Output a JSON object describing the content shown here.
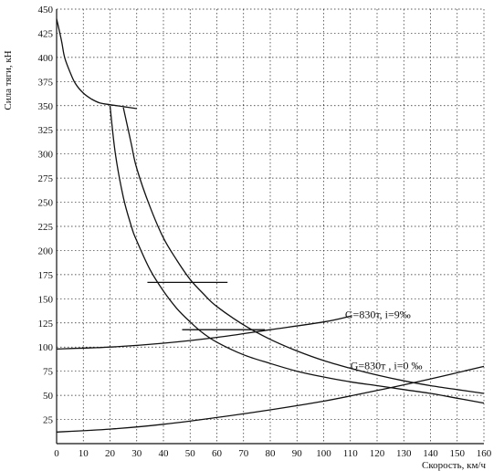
{
  "chart_data": {
    "type": "line",
    "ylabel": "Сила тяги, кН",
    "xlabel": "Скорость, км/ч",
    "xlim": [
      0,
      160
    ],
    "ylim": [
      0,
      450
    ],
    "xticks": [
      0,
      10,
      20,
      30,
      40,
      50,
      60,
      70,
      80,
      90,
      100,
      110,
      120,
      130,
      140,
      150,
      160
    ],
    "yticks": [
      25,
      50,
      75,
      100,
      125,
      150,
      175,
      200,
      225,
      250,
      275,
      300,
      325,
      350,
      375,
      400,
      425,
      450
    ],
    "grid": true,
    "series": [
      {
        "x": [
          0,
          1,
          2,
          3,
          5,
          7,
          10,
          13,
          16,
          20,
          25,
          30
        ],
        "y": [
          440,
          428,
          415,
          400,
          385,
          373,
          363,
          357,
          353,
          351,
          349,
          347
        ]
      },
      {
        "x": [
          20,
          22,
          25,
          28,
          30,
          35,
          40,
          45,
          50,
          55,
          60,
          70,
          80,
          90,
          100,
          110,
          120,
          130,
          140,
          150,
          160
        ],
        "y": [
          350,
          300,
          255,
          225,
          210,
          180,
          158,
          140,
          126,
          114,
          105,
          92,
          83,
          75,
          69,
          64,
          60,
          56,
          52,
          47,
          42
        ]
      },
      {
        "x": [
          25,
          28,
          30,
          35,
          40,
          45,
          50,
          55,
          60,
          70,
          80,
          90,
          100,
          110,
          120,
          130,
          140,
          150,
          160
        ],
        "y": [
          348,
          310,
          285,
          245,
          213,
          190,
          170,
          155,
          142,
          123,
          108,
          96,
          86,
          78,
          71,
          65,
          60,
          56,
          52
        ]
      },
      {
        "x": [
          0,
          20,
          40,
          60,
          80,
          100,
          110
        ],
        "y": [
          98,
          100,
          104,
          110,
          118,
          126,
          132
        ]
      },
      {
        "x": [
          0,
          20,
          40,
          60,
          80,
          100,
          120,
          140,
          160
        ],
        "y": [
          12,
          15,
          20,
          27,
          35,
          44,
          55,
          67,
          80
        ]
      }
    ],
    "annotations": [
      {
        "text": "G=830т, i=9‰",
        "x": 108,
        "y": 130
      },
      {
        "text": "G=830т , i=0 ‰",
        "x": 110,
        "y": 77
      }
    ],
    "marks": [
      {
        "x": [
          34,
          64
        ],
        "y": [
          167,
          167
        ]
      },
      {
        "x": [
          47,
          78
        ],
        "y": [
          118,
          118
        ]
      }
    ]
  }
}
